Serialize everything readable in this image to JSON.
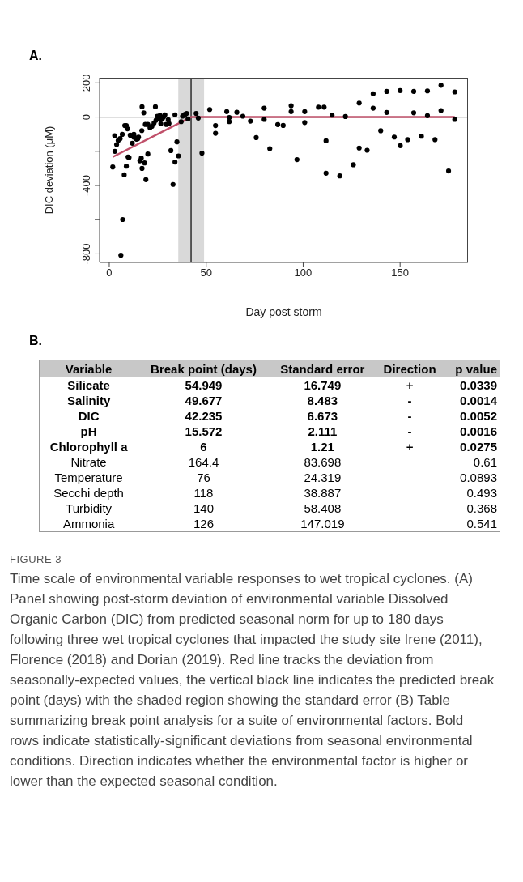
{
  "chart_data": [
    {
      "type": "scatter",
      "title": "A.",
      "xlabel": "Day post storm",
      "ylabel": "DIC deviation (μM)",
      "xlim": [
        -5,
        185
      ],
      "xticks": [
        0,
        50,
        100,
        150
      ],
      "ylim": [
        -850,
        230
      ],
      "yticks": [
        200,
        0,
        {
          "value": -200,
          "label": null
        },
        -400,
        {
          "value": -600,
          "label": null
        },
        -800
      ],
      "series": [
        {
          "color": "#000000",
          "marker": "circle",
          "x": [
            1.8,
            2.8,
            2.9,
            3.8,
            4.6,
            5.6,
            6,
            6.9,
            7.7,
            6.7,
            8,
            8.8,
            8.8,
            9.4,
            9.7,
            10.2,
            10.8,
            11.6,
            11.9,
            12.7,
            12.6,
            13.3,
            14,
            14.7,
            15.1,
            15.8,
            16.5,
            16.9,
            16.9,
            17.8,
            18.2,
            16.8,
            18.6,
            18.9,
            19.9,
            19.9,
            21,
            22,
            23.1,
            23.8,
            24.1,
            24.8,
            25.6,
            26.2,
            26.6,
            27.3,
            28,
            28.7,
            29.4,
            30.4,
            30.8,
            31.8,
            32.9,
            33.9,
            33.9,
            34.9,
            35.7,
            37.1,
            37.8,
            38.5,
            39.2,
            39.9,
            40.6,
            44.8,
            45.9,
            47.8,
            51.8,
            54.8,
            54.8,
            60.6,
            61.9,
            61.9,
            65.8,
            68.9,
            72.8,
            75.8,
            79.9,
            79.9,
            82.8,
            86.9,
            89.7,
            93.8,
            93.8,
            96.8,
            100.8,
            100.8,
            107.9,
            110.8,
            111.8,
            111.8,
            114.9,
            118.9,
            121.8,
            125.9,
            128.9,
            128.9,
            133,
            136.1,
            136.1,
            140,
            143.1,
            143.1,
            147,
            150,
            150.1,
            153.9,
            157,
            157,
            161,
            164.1,
            164.1,
            168,
            171.1,
            171.1,
            175,
            178.2,
            178.2
          ],
          "values": [
            -292,
            -109,
            -200,
            -161,
            -137,
            -126,
            -808,
            -599,
            -338,
            -101,
            -50,
            -50,
            -287,
            -69,
            -233,
            -237,
            -106,
            -110,
            -153,
            -101,
            -117,
            -121,
            -129,
            -126,
            -117,
            -256,
            -240,
            -300,
            60,
            25,
            -268,
            -79,
            -43,
            -366,
            -216,
            -43,
            -63,
            -54,
            -35,
            60,
            -19,
            5,
            -11,
            9,
            -39,
            -11,
            0,
            13,
            -43,
            -16,
            -38,
            -196,
            -394,
            -263,
            13,
            -145,
            -227,
            -27,
            5,
            13,
            16,
            21,
            -11,
            21,
            -6,
            -211,
            44,
            -50,
            -95,
            32,
            -27,
            -3,
            28,
            5,
            -24,
            -120,
            52,
            -14,
            -185,
            -44,
            -49,
            66,
            32,
            -249,
            32,
            -32,
            58,
            58,
            -139,
            -328,
            11,
            -344,
            3,
            -279,
            82,
            -181,
            -194,
            136,
            52,
            -80,
            150,
            27,
            -117,
            155,
            -167,
            -132,
            150,
            25,
            -112,
            153,
            8,
            -132,
            186,
            38,
            -315,
            147,
            -14
          ]
        },
        {
          "type": "line",
          "color": "#c0506a",
          "marker": "none",
          "x": [
            1.8,
            42.2,
            178.2
          ],
          "values": [
            -233,
            0,
            0
          ]
        }
      ],
      "ref_lines": [
        {
          "axis": "y",
          "value": 0,
          "color": "#808080"
        },
        {
          "axis": "x",
          "value": 42.2,
          "color": "#000000"
        }
      ],
      "bands": [
        {
          "axis": "x",
          "from": 35.6,
          "to": 48.9,
          "color": "#d9d9d9"
        }
      ]
    },
    {
      "type": "other",
      "title": "B.",
      "categories": [
        "Variable",
        "Break point (days)",
        "Standard error",
        "Direction",
        "p value"
      ],
      "cell_labels": [
        [
          "Silicate",
          "54.949",
          "16.749",
          "+",
          "0.0339"
        ],
        [
          "Salinity",
          "49.677",
          "8.483",
          "-",
          "0.0014"
        ],
        [
          "DIC",
          "42.235",
          "6.673",
          "-",
          "0.0052"
        ],
        [
          "pH",
          "15.572",
          "2.111",
          "-",
          "0.0016"
        ],
        [
          "Chlorophyll a",
          "6",
          "1.21",
          "+",
          "0.0275"
        ],
        [
          "Nitrate",
          "164.4",
          "83.698",
          null,
          "0.61"
        ],
        [
          "Temperature",
          "76",
          "24.319",
          null,
          "0.0893"
        ],
        [
          "Secchi depth",
          "118",
          "38.887",
          null,
          "0.493"
        ],
        [
          "Turbidity",
          "140",
          "58.408",
          null,
          "0.368"
        ],
        [
          "Ammonia",
          "126",
          "147.019",
          null,
          "0.541"
        ]
      ],
      "annotations": [
        "FIGURE 3",
        "Time scale of environmental variable responses to wet tropical cyclones. (A) Panel showing post-storm deviation of environmental variable Dissolved Organic Carbon (DIC) from predicted seasonal norm for up to 180 days following three wet tropical cyclones that impacted the study site Irene (2011), Florence (2018) and Dorian (2019). Red line tracks the deviation from seasonally-expected values, the vertical black line indicates the predicted break point (days) with the shaded region showing the standard error (B) Table summarizing break point analysis for a suite of environmental factors. Bold rows indicate statistically-significant deviations from seasonal environmental conditions. Direction indicates whether the environmental factor is higher or lower than the expected seasonal condition."
      ]
    }
  ]
}
